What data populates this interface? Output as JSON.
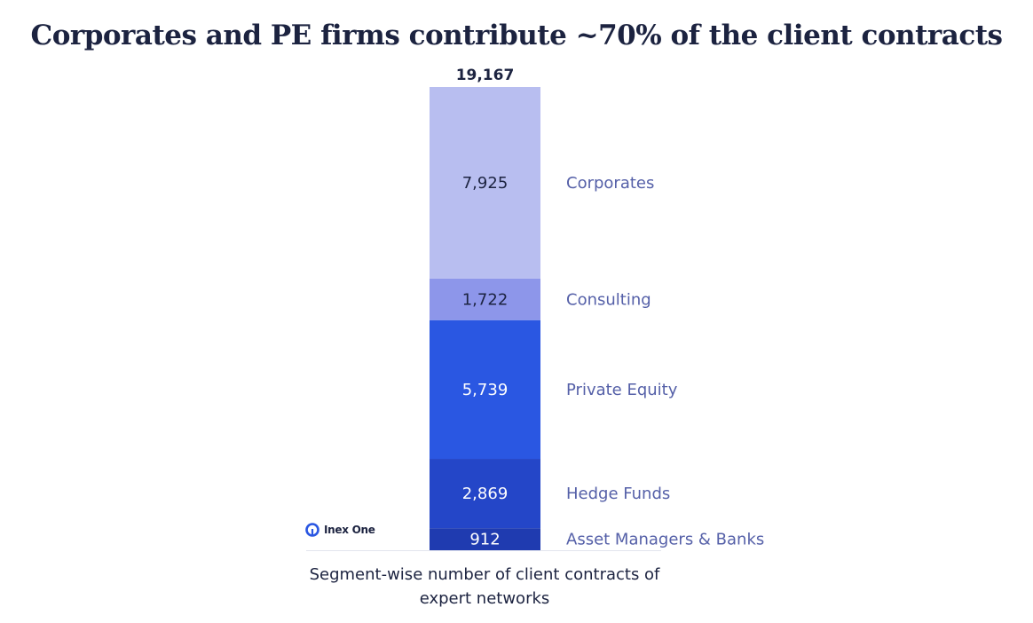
{
  "title": "Corporates and PE firms contribute ~70% of the client contracts",
  "caption": "Segment-wise number of client contracts of expert networks",
  "logo": {
    "text": "Inex One"
  },
  "chart_data": {
    "type": "bar",
    "stacked": true,
    "categories": [
      ""
    ],
    "total": 19167,
    "total_label": "19,167",
    "series": [
      {
        "name": "Asset Managers & Banks",
        "values": [
          912
        ],
        "label": "912",
        "color": "#1f3bb0",
        "text_color": "#ffffff"
      },
      {
        "name": "Hedge Funds",
        "values": [
          2869
        ],
        "label": "2,869",
        "color": "#2446c8",
        "text_color": "#ffffff"
      },
      {
        "name": "Private Equity",
        "values": [
          5739
        ],
        "label": "5,739",
        "color": "#2a57e2",
        "text_color": "#ffffff"
      },
      {
        "name": "Consulting",
        "values": [
          1722
        ],
        "label": "1,722",
        "color": "#8d96ea",
        "text_color": "#1c2340"
      },
      {
        "name": "Corporates",
        "values": [
          7925
        ],
        "label": "7,925",
        "color": "#b8bef0",
        "text_color": "#1c2340"
      }
    ],
    "legend_position": "right",
    "label_color": "#5560a8",
    "grid": false
  }
}
